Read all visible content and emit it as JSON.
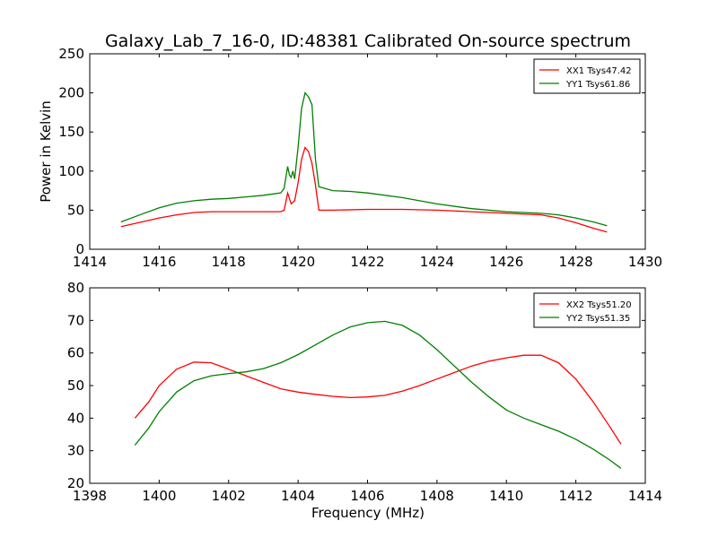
{
  "figure": {
    "title": "Galaxy_Lab_7_16-0, ID:48381 Calibrated On-source spectrum",
    "xlabel": "Frequency (MHz)",
    "ylabel": "Power in Kelvin"
  },
  "chart_data": [
    {
      "type": "line",
      "title": "Galaxy_Lab_7_16-0, ID:48381 Calibrated On-source spectrum",
      "xlabel": "",
      "ylabel": "Power in Kelvin",
      "xlim": [
        1414,
        1430
      ],
      "ylim": [
        0,
        250
      ],
      "xticks": [
        "1414",
        "1416",
        "1418",
        "1420",
        "1422",
        "1424",
        "1426",
        "1428",
        "1430"
      ],
      "yticks": [
        "0",
        "50",
        "100",
        "150",
        "200",
        "250"
      ],
      "grid": false,
      "legend": "top-right",
      "series": [
        {
          "name": "XX1 Tsys47.42",
          "color": "#ff0000",
          "x": [
            1414.9,
            1415.5,
            1416,
            1416.5,
            1417,
            1417.5,
            1418,
            1418.5,
            1419,
            1419.5,
            1419.6,
            1419.7,
            1419.8,
            1419.9,
            1420.0,
            1420.1,
            1420.2,
            1420.3,
            1420.4,
            1420.5,
            1420.6,
            1420.7,
            1421,
            1422,
            1423,
            1424,
            1425,
            1426,
            1427,
            1427.5,
            1428,
            1428.5,
            1428.9
          ],
          "y": [
            29,
            35,
            40,
            44,
            47,
            48,
            48,
            48,
            48,
            48,
            50,
            72,
            58,
            62,
            85,
            115,
            130,
            125,
            110,
            82,
            50,
            50,
            50,
            51,
            51,
            50,
            48,
            46,
            44,
            40,
            34,
            27,
            22
          ]
        },
        {
          "name": "YY1 Tsys61.86",
          "color": "#008000",
          "x": [
            1414.9,
            1415.5,
            1416,
            1416.5,
            1417,
            1417.5,
            1418,
            1418.5,
            1419,
            1419.5,
            1419.6,
            1419.7,
            1419.75,
            1419.8,
            1419.85,
            1419.9,
            1420.0,
            1420.1,
            1420.2,
            1420.3,
            1420.4,
            1420.5,
            1420.6,
            1421,
            1421.5,
            1422,
            1423,
            1424,
            1425,
            1426,
            1427,
            1427.5,
            1428,
            1428.5,
            1428.9
          ],
          "y": [
            35,
            45,
            53,
            59,
            62,
            64,
            65,
            67,
            69,
            72,
            78,
            106,
            95,
            92,
            100,
            90,
            130,
            180,
            200,
            195,
            185,
            115,
            80,
            75,
            74,
            72,
            66,
            58,
            52,
            48,
            46,
            44,
            40,
            35,
            30
          ]
        }
      ]
    },
    {
      "type": "line",
      "title": "",
      "xlabel": "Frequency (MHz)",
      "ylabel": "",
      "xlim": [
        1398,
        1414
      ],
      "ylim": [
        20,
        80
      ],
      "xticks": [
        "1398",
        "1400",
        "1402",
        "1404",
        "1406",
        "1408",
        "1410",
        "1412",
        "1414"
      ],
      "yticks": [
        "20",
        "30",
        "40",
        "50",
        "60",
        "70",
        "80"
      ],
      "grid": false,
      "legend": "top-right",
      "series": [
        {
          "name": "XX2 Tsys51.20",
          "color": "#ff0000",
          "x": [
            1399.3,
            1399.7,
            1400.0,
            1400.5,
            1401.0,
            1401.5,
            1402.0,
            1402.5,
            1403.0,
            1403.5,
            1404.0,
            1404.5,
            1405.0,
            1405.5,
            1406.0,
            1406.5,
            1407.0,
            1407.5,
            1408.0,
            1408.5,
            1409.0,
            1409.5,
            1410.0,
            1410.5,
            1411.0,
            1411.5,
            1412.0,
            1412.5,
            1413.0,
            1413.3
          ],
          "y": [
            40,
            45,
            50,
            55,
            57.2,
            57,
            55,
            53,
            51,
            49,
            48,
            47.3,
            46.7,
            46.3,
            46.5,
            47,
            48.3,
            50,
            52,
            54,
            56,
            57.5,
            58.5,
            59.3,
            59.3,
            57,
            52,
            45,
            37,
            32
          ]
        },
        {
          "name": "YY2 Tsys51.35",
          "color": "#008000",
          "x": [
            1399.3,
            1399.7,
            1400.0,
            1400.5,
            1401.0,
            1401.5,
            1402.0,
            1402.5,
            1403.0,
            1403.5,
            1404.0,
            1404.5,
            1405.0,
            1405.5,
            1406.0,
            1406.5,
            1407.0,
            1407.5,
            1408.0,
            1408.5,
            1409.0,
            1409.5,
            1410.0,
            1410.5,
            1411.0,
            1411.5,
            1412.0,
            1412.5,
            1413.0,
            1413.3
          ],
          "y": [
            31.7,
            37,
            42,
            48,
            51.5,
            53,
            53.7,
            54.2,
            55.2,
            57,
            59.5,
            62.5,
            65.5,
            68,
            69.3,
            69.7,
            68.5,
            65.5,
            61,
            56,
            51,
            46.5,
            42.5,
            40,
            38,
            36,
            33.5,
            30.5,
            27,
            24.6
          ]
        }
      ]
    }
  ]
}
